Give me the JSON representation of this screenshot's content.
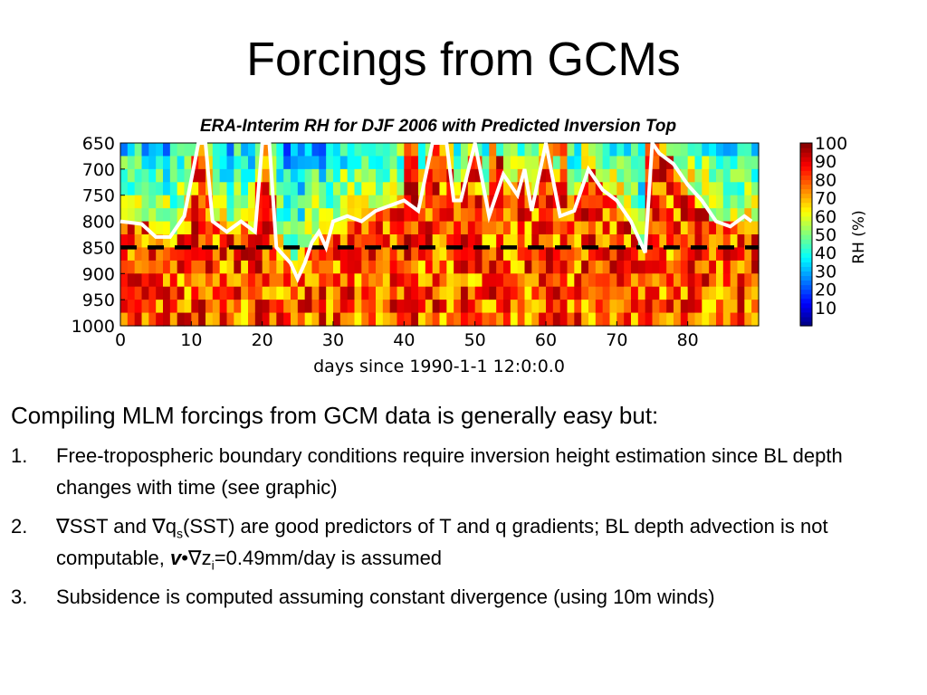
{
  "slide": {
    "title": "Forcings from GCMs",
    "figure_title": "ERA-Interim RH for DJF 2006 with Predicted Inversion Top",
    "lead": "Compiling MLM forcings from GCM data is generally easy but:",
    "items": [
      {
        "num": "1.",
        "text": "Free-tropospheric boundary conditions require inversion height estimation since BL depth changes with time (see graphic)"
      },
      {
        "num": "2.",
        "parts": [
          "∇SST and ∇q",
          "s",
          "(SST) are good predictors of T and q gradients; BL depth advection is not computable, ",
          "v",
          "•",
          "∇z",
          "i",
          "=0.49mm/day is assumed"
        ]
      },
      {
        "num": "3.",
        "text": "Subsidence is computed assuming constant divergence (using 10m winds)"
      }
    ]
  },
  "chart_data": {
    "type": "heatmap",
    "title": "ERA-Interim RH for DJF 2006 with Predicted Inversion Top",
    "xlabel": "days since 1990-1-1 12:0:0.0",
    "ylabel": "",
    "xlim": [
      0,
      90
    ],
    "ylim": [
      1000,
      650
    ],
    "xticks": [
      "0",
      "10",
      "20",
      "30",
      "40",
      "50",
      "60",
      "70",
      "80"
    ],
    "yticks": [
      "650",
      "700",
      "750",
      "800",
      "850",
      "900",
      "950",
      "1000"
    ],
    "colorbar": {
      "label": "RH (%)",
      "range": [
        0,
        100
      ],
      "ticks": [
        "10",
        "20",
        "30",
        "40",
        "50",
        "60",
        "70",
        "80",
        "90",
        "100"
      ]
    },
    "predicted_inversion_top": {
      "days": [
        0,
        3,
        5,
        7,
        9,
        11,
        12,
        13,
        15,
        17,
        19,
        20,
        21,
        22,
        24,
        25,
        26,
        27,
        28,
        29,
        30,
        32,
        34,
        36,
        38,
        40,
        42,
        44,
        46,
        47,
        48,
        50,
        52,
        54,
        56,
        57,
        58,
        60,
        62,
        64,
        66,
        67,
        68,
        70,
        72,
        74,
        75,
        76,
        78,
        80,
        82,
        84,
        86,
        88,
        89
      ],
      "pressure": [
        800,
        805,
        830,
        830,
        790,
        650,
        650,
        800,
        820,
        800,
        820,
        650,
        650,
        850,
        880,
        910,
        880,
        840,
        820,
        850,
        800,
        790,
        800,
        780,
        770,
        760,
        780,
        650,
        650,
        760,
        760,
        650,
        790,
        710,
        750,
        700,
        780,
        650,
        790,
        780,
        700,
        720,
        740,
        760,
        800,
        860,
        650,
        670,
        690,
        730,
        760,
        800,
        810,
        790,
        800
      ]
    },
    "dashed_line": {
      "pressure": 850
    },
    "color_ramp": [
      "#00007f",
      "#0000ff",
      "#007fff",
      "#00ffff",
      "#7fff7f",
      "#ffff00",
      "#ff7f00",
      "#ff0000",
      "#7f0000"
    ],
    "grid": false,
    "legend": "colorbar-right"
  }
}
